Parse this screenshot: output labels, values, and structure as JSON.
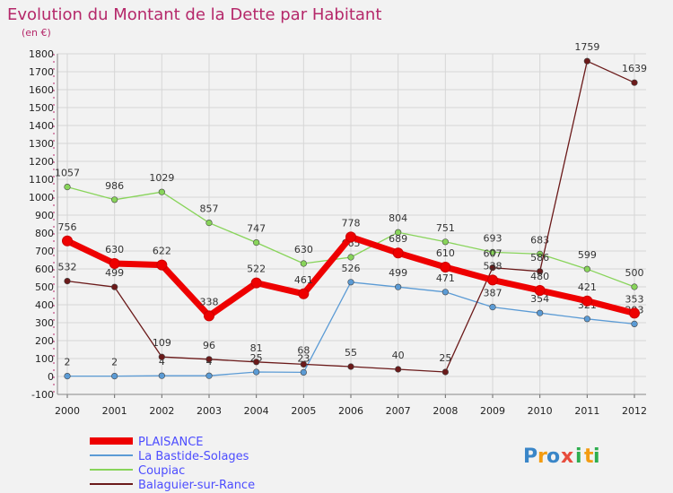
{
  "chart_data": {
    "type": "line",
    "title": "Evolution du Montant de la Dette par Habitant",
    "subtitle": "(en €)",
    "categories": [
      "2000",
      "2001",
      "2002",
      "2003",
      "2004",
      "2005",
      "2006",
      "2007",
      "2008",
      "2009",
      "2010",
      "2011",
      "2012"
    ],
    "ylim": [
      -100,
      1800
    ],
    "yticks": [
      -100,
      0,
      100,
      200,
      300,
      400,
      500,
      600,
      700,
      800,
      900,
      1000,
      1100,
      1200,
      1300,
      1400,
      1500,
      1600,
      1700,
      1800
    ],
    "grid": true,
    "legend_position": "bottom-left",
    "series": [
      {
        "name": "PLAISANCE",
        "color": "#ee0000",
        "emphasis": true,
        "values": [
          756,
          630,
          622,
          338,
          522,
          461,
          778,
          689,
          610,
          538,
          480,
          421,
          353
        ],
        "labels": [
          "756",
          "630",
          "622",
          "338",
          "522",
          "461",
          "778",
          "689",
          "610",
          "538",
          "480",
          "421",
          "353"
        ]
      },
      {
        "name": "La Bastide-Solages",
        "color": "#5b9bd5",
        "values": [
          2,
          2,
          4,
          4,
          25,
          23,
          526,
          499,
          471,
          387,
          354,
          321,
          293
        ],
        "labels": [
          "2",
          "2",
          "4",
          "4",
          "25",
          "23",
          "526",
          "499",
          "471",
          "387",
          "354",
          "321",
          "293"
        ]
      },
      {
        "name": "Coupiac",
        "color": "#88d45a",
        "values": [
          1057,
          986,
          1029,
          857,
          747,
          630,
          665,
          804,
          751,
          693,
          683,
          599,
          500
        ],
        "labels": [
          "1057",
          "986",
          "1029",
          "857",
          "747",
          "630",
          "665",
          "804",
          "751",
          "693",
          "683",
          "599",
          "500"
        ]
      },
      {
        "name": "Balaguier-sur-Rance",
        "color": "#6b1a1a",
        "values": [
          532,
          499,
          109,
          96,
          81,
          68,
          55,
          40,
          25,
          607,
          586,
          1759,
          1639
        ],
        "labels": [
          "532",
          "499",
          "109",
          "96",
          "81",
          "68",
          "55",
          "40",
          "25",
          "607",
          "586",
          "1759",
          "1639"
        ]
      }
    ]
  },
  "logo": {
    "letters": [
      "P",
      "r",
      "o",
      "x",
      "i",
      "t",
      "i"
    ],
    "colors": [
      "#3a86c8",
      "#f39c12",
      "#3a86c8",
      "#e74c3c",
      "#2eae4f",
      "#f39c12",
      "#2eae4f"
    ]
  }
}
